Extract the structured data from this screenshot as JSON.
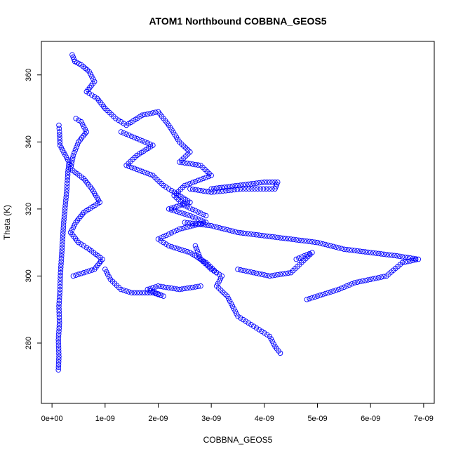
{
  "chart_data": {
    "type": "scatter",
    "title": "ATOM1 Northbound COBBNA_GEOS5",
    "xlabel": "COBBNA_GEOS5",
    "ylabel": "Theta (K)",
    "xlim": [
      -2e-10,
      7.2e-09
    ],
    "ylim": [
      262,
      370
    ],
    "x_ticks": [
      0,
      1e-09,
      2e-09,
      3e-09,
      4e-09,
      5e-09,
      6e-09,
      7e-09
    ],
    "x_tick_labels": [
      "0e+00",
      "1e-09",
      "2e-09",
      "3e-09",
      "4e-09",
      "5e-09",
      "6e-09",
      "7e-09"
    ],
    "y_ticks": [
      280,
      300,
      320,
      340,
      360
    ],
    "y_tick_labels": [
      "280",
      "300",
      "320",
      "340",
      "360"
    ],
    "grid": false,
    "marker": "open-circle",
    "color": "#0000ff",
    "series": [
      {
        "trace": "near-zero column",
        "points": [
          [
            1.2e-10,
            272
          ],
          [
            1.3e-10,
            276
          ],
          [
            1.2e-10,
            281
          ],
          [
            1.4e-10,
            286
          ],
          [
            1.3e-10,
            291
          ],
          [
            1.5e-10,
            296
          ],
          [
            1.6e-10,
            301
          ],
          [
            1.8e-10,
            306
          ],
          [
            2e-10,
            311
          ],
          [
            2.2e-10,
            316
          ],
          [
            2.5e-10,
            321
          ],
          [
            2.8e-10,
            326
          ],
          [
            3e-10,
            331
          ],
          [
            3.2e-10,
            334
          ],
          [
            1.5e-10,
            339
          ],
          [
            1.4e-10,
            343
          ],
          [
            1.3e-10,
            345
          ]
        ]
      },
      {
        "trace": "upper branch",
        "points": [
          [
            3.8e-10,
            366
          ],
          [
            4.3e-10,
            364
          ],
          [
            5.5e-10,
            363
          ],
          [
            7e-10,
            361
          ],
          [
            8e-10,
            358
          ],
          [
            6.5e-10,
            355
          ],
          [
            8.5e-10,
            353
          ],
          [
            1e-09,
            350
          ],
          [
            1.2e-09,
            347
          ],
          [
            1.4e-09,
            345
          ],
          [
            1.7e-09,
            348
          ],
          [
            2e-09,
            349
          ],
          [
            2.2e-09,
            345
          ],
          [
            2.4e-09,
            340
          ],
          [
            2.6e-09,
            337
          ],
          [
            2.4e-09,
            334
          ],
          [
            2.8e-09,
            333
          ],
          [
            3e-09,
            330
          ],
          [
            2.5e-09,
            327
          ],
          [
            2.3e-09,
            324
          ],
          [
            2.5e-09,
            321
          ],
          [
            2.9e-09,
            318
          ]
        ]
      },
      {
        "trace": "left dense cluster",
        "points": [
          [
            4.5e-10,
            347
          ],
          [
            5.5e-10,
            346
          ],
          [
            6.5e-10,
            343
          ],
          [
            5e-10,
            340
          ],
          [
            4e-10,
            336
          ],
          [
            3.5e-10,
            332
          ],
          [
            6e-10,
            329
          ],
          [
            7.5e-10,
            326
          ],
          [
            9e-10,
            322
          ],
          [
            6e-10,
            319
          ],
          [
            4.5e-10,
            316
          ],
          [
            3.5e-10,
            313
          ],
          [
            5e-10,
            310
          ],
          [
            7e-10,
            308
          ],
          [
            9.5e-10,
            305
          ],
          [
            8e-10,
            302
          ],
          [
            4e-10,
            300
          ]
        ]
      },
      {
        "trace": "central cluster",
        "points": [
          [
            1.3e-09,
            343
          ],
          [
            1.6e-09,
            341
          ],
          [
            1.9e-09,
            339
          ],
          [
            1.6e-09,
            336
          ],
          [
            1.4e-09,
            333
          ],
          [
            1.9e-09,
            330
          ],
          [
            2.1e-09,
            327
          ],
          [
            2.3e-09,
            325
          ],
          [
            2.6e-09,
            322
          ],
          [
            2.2e-09,
            320
          ],
          [
            2.6e-09,
            318
          ],
          [
            2.9e-09,
            316
          ],
          [
            2.4e-09,
            314
          ],
          [
            2e-09,
            311
          ],
          [
            2.2e-09,
            309
          ],
          [
            2.6e-09,
            307
          ],
          [
            2.9e-09,
            304
          ],
          [
            3.1e-09,
            301
          ]
        ]
      },
      {
        "trace": "descending tail",
        "points": [
          [
            2.7e-09,
            309
          ],
          [
            2.8e-09,
            305
          ],
          [
            3e-09,
            302
          ],
          [
            3.2e-09,
            300
          ],
          [
            3.1e-09,
            297
          ],
          [
            3.3e-09,
            294
          ],
          [
            3.4e-09,
            291
          ],
          [
            3.5e-09,
            288
          ],
          [
            3.7e-09,
            286
          ],
          [
            3.9e-09,
            284
          ],
          [
            4.1e-09,
            282
          ],
          [
            4.2e-09,
            279
          ],
          [
            4.3e-09,
            277
          ]
        ]
      },
      {
        "trace": "right excursion",
        "points": [
          [
            2.5e-09,
            316
          ],
          [
            3e-09,
            315
          ],
          [
            3.5e-09,
            313
          ],
          [
            4e-09,
            312
          ],
          [
            4.5e-09,
            311
          ],
          [
            5e-09,
            310
          ],
          [
            5.5e-09,
            308
          ],
          [
            6e-09,
            307
          ],
          [
            6.5e-09,
            306
          ],
          [
            6.9e-09,
            305
          ],
          [
            6.6e-09,
            304
          ],
          [
            6.3e-09,
            300
          ],
          [
            6e-09,
            299
          ],
          [
            5.7e-09,
            298
          ],
          [
            5.4e-09,
            296
          ],
          [
            5e-09,
            294
          ],
          [
            4.8e-09,
            293
          ]
        ]
      },
      {
        "trace": "mid return",
        "points": [
          [
            4.6e-09,
            305
          ],
          [
            4.9e-09,
            307
          ],
          [
            4.5e-09,
            301
          ],
          [
            4.1e-09,
            300
          ],
          [
            3.8e-09,
            301
          ],
          [
            3.5e-09,
            302
          ]
        ]
      },
      {
        "trace": "horizontal loop",
        "points": [
          [
            3e-09,
            326
          ],
          [
            3.5e-09,
            327
          ],
          [
            4e-09,
            328
          ],
          [
            4.25e-09,
            328
          ],
          [
            4.2e-09,
            326
          ],
          [
            3.6e-09,
            326
          ],
          [
            3e-09,
            325
          ],
          [
            2.6e-09,
            326
          ]
        ]
      },
      {
        "trace": "lower left arc",
        "points": [
          [
            1e-09,
            302
          ],
          [
            1.1e-09,
            299
          ],
          [
            1.3e-09,
            296
          ],
          [
            1.5e-09,
            295
          ],
          [
            1.9e-09,
            295
          ],
          [
            2.1e-09,
            294
          ],
          [
            1.8e-09,
            296
          ],
          [
            2e-09,
            297
          ],
          [
            2.4e-09,
            296
          ],
          [
            2.8e-09,
            297
          ]
        ]
      }
    ]
  }
}
